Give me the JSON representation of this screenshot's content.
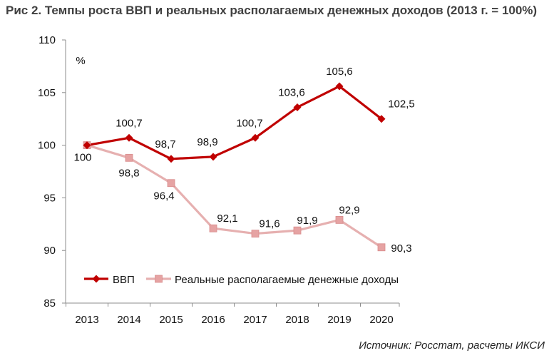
{
  "chart_data": {
    "type": "line",
    "title": "Рис 2. Темпы роста ВВП и реальных располагаемых денежных доходов (2013 г. = 100%)",
    "ylabel": "%",
    "xlabel": "",
    "categories": [
      "2013",
      "2014",
      "2015",
      "2016",
      "2017",
      "2018",
      "2019",
      "2020"
    ],
    "ylim": [
      85,
      110
    ],
    "yticks": [
      85,
      90,
      95,
      100,
      105,
      110
    ],
    "grid": false,
    "legend": "bottom-inside",
    "series": [
      {
        "name": "ВВП",
        "color": "#C00000",
        "marker": "diamond",
        "values": [
          100,
          100.7,
          98.7,
          98.9,
          100.7,
          103.6,
          105.6,
          102.5
        ],
        "labels": [
          "",
          "100,7",
          "98,7",
          "98,9",
          "100,7",
          "103,6",
          "105,6",
          "102,5"
        ]
      },
      {
        "name": "Реальные располагаемые денежные доходы",
        "color": "#E6B0B0",
        "markerColor": "#E6A3A3",
        "marker": "square",
        "values": [
          100,
          98.8,
          96.4,
          92.1,
          91.6,
          91.9,
          92.9,
          90.3
        ],
        "labels": [
          "100",
          "98,8",
          "96,4",
          "92,1",
          "91,6",
          "91,9",
          "92,9",
          "90,3"
        ]
      }
    ]
  },
  "source": "Источник: Росстат, расчеты ИКСИ"
}
